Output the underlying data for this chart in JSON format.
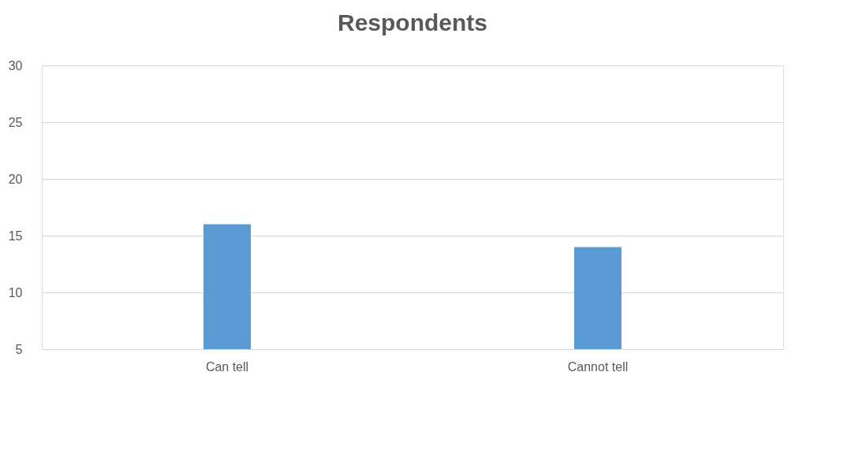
{
  "chart_data": {
    "type": "bar",
    "title": "Respondents",
    "categories": [
      "Can tell",
      "Cannot tell"
    ],
    "values": [
      16,
      14
    ],
    "color": "#5b9bd5",
    "ylim": [
      5,
      30
    ],
    "yticks": [
      5,
      10,
      15,
      20,
      25,
      30
    ],
    "grid": "y"
  }
}
